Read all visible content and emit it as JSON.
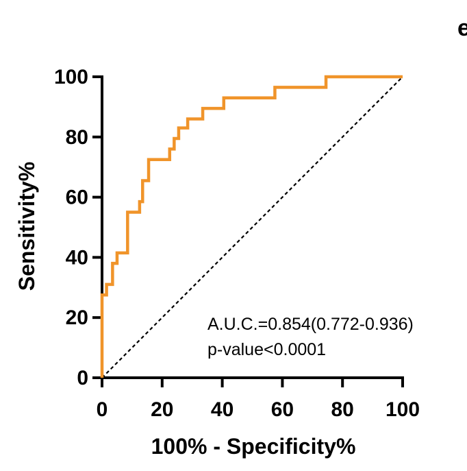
{
  "chart_data": {
    "type": "line",
    "panel_label": "e",
    "title": "",
    "xlabel": "100% - Specificity%",
    "ylabel": "Sensitivity%",
    "xlim": [
      0,
      100
    ],
    "ylim": [
      0,
      100
    ],
    "x_ticks": [
      0,
      20,
      40,
      60,
      80,
      100
    ],
    "y_ticks": [
      0,
      20,
      40,
      60,
      80,
      100
    ],
    "x_tick_labels": [
      "0",
      "20",
      "40",
      "60",
      "80",
      "100"
    ],
    "y_tick_labels": [
      "0",
      "20",
      "40",
      "60",
      "80",
      "100"
    ],
    "annotations": [
      "A.U.C.=0.854(0.772-0.936)",
      "p-value<0.0001"
    ],
    "colors": {
      "roc": "#F0942A",
      "reference": "#000000"
    },
    "series": [
      {
        "name": "ROC",
        "x": [
          0,
          0,
          0,
          1.5,
          1.5,
          3.5,
          3.5,
          5,
          5,
          8.5,
          8.5,
          12.5,
          12.5,
          13.5,
          13.5,
          15.5,
          15.5,
          22.5,
          22.5,
          24,
          24,
          25.5,
          25.5,
          28.5,
          28.5,
          33.5,
          33.5,
          40.5,
          40.5,
          57.5,
          57.5,
          74.5,
          74.5,
          100
        ],
        "y": [
          0,
          20,
          27.5,
          27.5,
          31,
          31,
          38,
          38,
          41.5,
          41.5,
          55,
          55,
          58.5,
          58.5,
          65.5,
          65.5,
          72.5,
          72.5,
          76,
          76,
          79.5,
          79.5,
          83,
          83,
          86,
          86,
          89.5,
          89.5,
          93,
          93,
          96.5,
          96.5,
          100,
          100
        ]
      },
      {
        "name": "Reference",
        "x": [
          0,
          100
        ],
        "y": [
          0,
          100
        ]
      }
    ]
  }
}
